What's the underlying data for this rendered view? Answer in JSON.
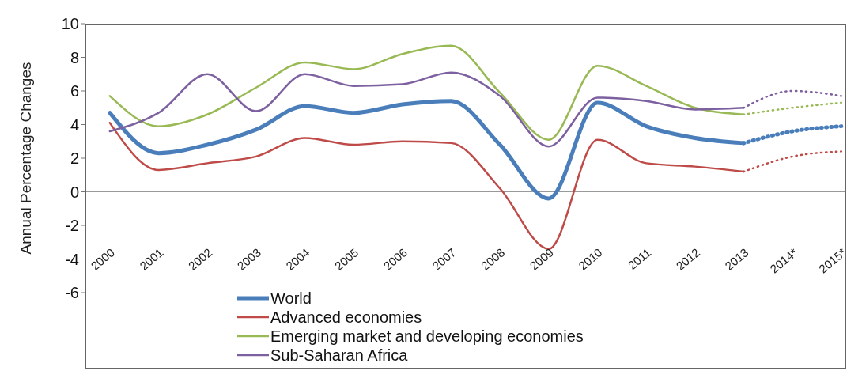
{
  "chart_data": {
    "type": "line",
    "ylabel": "Annual Percentage Changes",
    "categories": [
      "2000",
      "2001",
      "2002",
      "2003",
      "2004",
      "2005",
      "2006",
      "2007",
      "2008",
      "2009",
      "2010",
      "2011",
      "2012",
      "2013",
      "2014*",
      "2015*"
    ],
    "series": [
      {
        "name": "World",
        "color": "#4a7ebb",
        "values": [
          4.7,
          2.3,
          2.8,
          3.7,
          5.1,
          4.7,
          5.2,
          5.4,
          2.8,
          -0.4,
          5.3,
          3.9,
          3.2,
          2.9,
          null,
          null
        ]
      },
      {
        "name": "Advanced economies",
        "color": "#be4b48",
        "values": [
          4.1,
          1.3,
          1.7,
          2.1,
          3.2,
          2.8,
          3.0,
          2.9,
          0.2,
          -3.4,
          3.1,
          1.7,
          1.5,
          1.2,
          null,
          null
        ]
      },
      {
        "name": "Emerging market and developing economies",
        "color": "#98b954",
        "values": [
          5.7,
          3.9,
          4.6,
          6.2,
          7.7,
          7.3,
          8.2,
          8.7,
          5.9,
          3.1,
          7.5,
          6.3,
          5.0,
          4.6,
          null,
          null
        ]
      },
      {
        "name": "Sub-Saharan Africa",
        "color": "#7d60a0",
        "values": [
          3.6,
          4.7,
          7.0,
          4.8,
          7.0,
          6.3,
          6.4,
          7.1,
          5.7,
          2.7,
          5.6,
          5.4,
          4.9,
          5.0,
          null,
          null
        ]
      },
      {
        "color": "#4a7ebb",
        "line_style": "dotted",
        "values": [
          null,
          null,
          null,
          null,
          null,
          null,
          null,
          null,
          null,
          null,
          null,
          null,
          null,
          2.9,
          3.6,
          3.9
        ]
      },
      {
        "color": "#be4b48",
        "line_style": "dotted",
        "values": [
          null,
          null,
          null,
          null,
          null,
          null,
          null,
          null,
          null,
          null,
          null,
          null,
          null,
          1.2,
          2.1,
          2.4
        ]
      },
      {
        "color": "#98b954",
        "line_style": "dotted",
        "values": [
          null,
          null,
          null,
          null,
          null,
          null,
          null,
          null,
          null,
          null,
          null,
          null,
          null,
          4.6,
          5.0,
          5.3
        ]
      },
      {
        "color": "#7d60a0",
        "line_style": "dotted",
        "values": [
          null,
          null,
          null,
          null,
          null,
          null,
          null,
          null,
          null,
          null,
          null,
          null,
          null,
          5.0,
          6.0,
          5.7
        ]
      }
    ],
    "ref_lines": [
      {
        "axis": "y",
        "value": 0,
        "color": "#999999"
      }
    ],
    "ylim": [
      -6,
      10
    ],
    "yticks": [
      -6,
      -4,
      -2,
      0,
      2,
      4,
      6,
      8,
      10
    ],
    "legend": "bottom left",
    "line_style": "solid",
    "marker": "none"
  }
}
